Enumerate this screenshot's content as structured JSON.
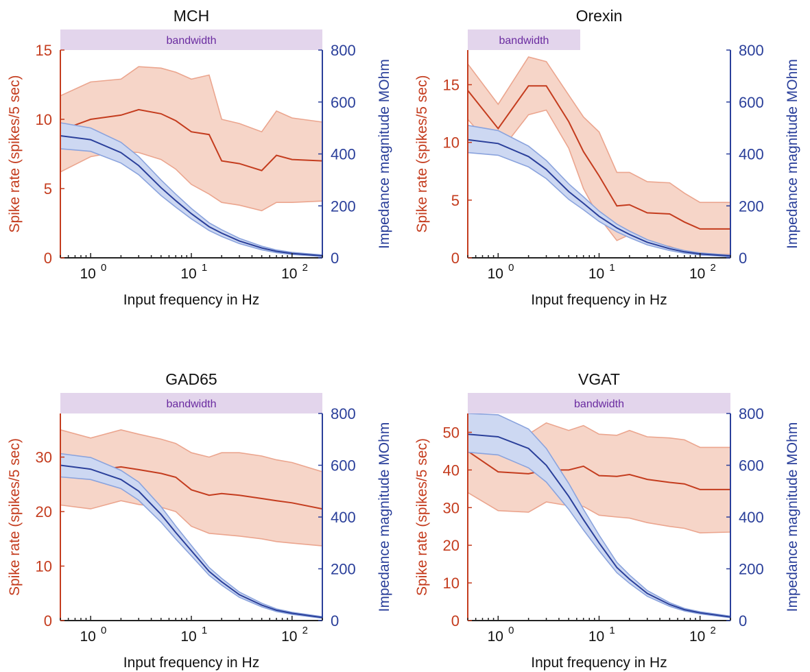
{
  "figure": {
    "colors": {
      "spike_line": "#c43c1e",
      "spike_fill": "#f6d5c8",
      "spike_edge": "#eba58e",
      "imp_line": "#2a3f9a",
      "imp_fill": "#cdd8f2",
      "imp_edge": "#8aa3dd",
      "bandwidth_fill": "#e3d5ec",
      "bandwidth_text": "#6a2ba0",
      "axis": "#222222"
    }
  },
  "chart_data": [
    {
      "type": "line",
      "title": "MCH",
      "xlabel": "Input frequency in Hz",
      "ylabel_left": "Spike rate (spikes/5 sec)",
      "ylabel_right": "Impedance magnitude MOhm",
      "x_scale": "log",
      "xlim": [
        0.5,
        200
      ],
      "x_ticks": [
        {
          "value": 1,
          "base": "10",
          "exp": "0"
        },
        {
          "value": 10,
          "base": "10",
          "exp": "1"
        },
        {
          "value": 100,
          "base": "10",
          "exp": "2"
        }
      ],
      "ylim_left": [
        0,
        15
      ],
      "yticks_left": [
        0,
        5,
        10,
        15
      ],
      "ylim_right": [
        0,
        800
      ],
      "yticks_right": [
        0,
        200,
        400,
        600,
        800
      ],
      "bandwidth": {
        "label": "bandwidth",
        "xmin": 0.5,
        "xmax": 200
      },
      "spike_rate": {
        "x": [
          0.5,
          1,
          2,
          3,
          5,
          7,
          10,
          15,
          20,
          30,
          50,
          70,
          100,
          200
        ],
        "mean": [
          9.2,
          10.0,
          10.3,
          10.7,
          10.4,
          9.9,
          9.1,
          8.9,
          7.0,
          6.8,
          6.3,
          7.4,
          7.1,
          7.0
        ],
        "upper": [
          11.7,
          12.7,
          12.9,
          13.8,
          13.7,
          13.4,
          12.9,
          13.2,
          10.0,
          9.7,
          9.1,
          10.6,
          10.1,
          9.8
        ],
        "lower": [
          6.2,
          7.3,
          7.7,
          7.6,
          7.1,
          6.4,
          5.3,
          4.6,
          4.0,
          3.8,
          3.4,
          4.0,
          4.0,
          4.1
        ]
      },
      "impedance": {
        "x": [
          0.5,
          1,
          2,
          3,
          5,
          7,
          10,
          15,
          20,
          30,
          50,
          70,
          100,
          200
        ],
        "mean": [
          470,
          455,
          405,
          355,
          270,
          220,
          170,
          120,
          95,
          65,
          38,
          25,
          17,
          8
        ],
        "upper": [
          520,
          500,
          445,
          390,
          300,
          245,
          190,
          135,
          108,
          75,
          45,
          30,
          21,
          11
        ],
        "lower": [
          420,
          410,
          365,
          320,
          240,
          195,
          150,
          105,
          82,
          55,
          31,
          20,
          13,
          5
        ]
      }
    },
    {
      "type": "line",
      "title": "Orexin",
      "xlabel": "Input frequency in Hz",
      "ylabel_left": "Spike rate (spikes/5 sec)",
      "ylabel_right": "Impedance magnitude MOhm",
      "x_scale": "log",
      "xlim": [
        0.5,
        200
      ],
      "x_ticks": [
        {
          "value": 1,
          "base": "10",
          "exp": "0"
        },
        {
          "value": 10,
          "base": "10",
          "exp": "1"
        },
        {
          "value": 100,
          "base": "10",
          "exp": "2"
        }
      ],
      "ylim_left": [
        0,
        18
      ],
      "yticks_left": [
        0,
        5,
        10,
        15
      ],
      "ylim_right": [
        0,
        800
      ],
      "yticks_right": [
        0,
        200,
        400,
        600,
        800
      ],
      "bandwidth": {
        "label": "bandwidth",
        "xmin": 0.5,
        "xmax": 6.5
      },
      "spike_rate": {
        "x": [
          0.5,
          1,
          2,
          3,
          5,
          7,
          10,
          15,
          20,
          30,
          50,
          70,
          100,
          200
        ],
        "mean": [
          14.5,
          11.2,
          14.9,
          14.9,
          11.8,
          9.2,
          7.1,
          4.5,
          4.6,
          3.9,
          3.8,
          3.1,
          2.5,
          2.5
        ],
        "upper": [
          16.8,
          13.3,
          17.4,
          17.0,
          14.1,
          12.2,
          10.9,
          7.4,
          7.4,
          6.6,
          6.5,
          5.6,
          4.8,
          4.8
        ],
        "lower": [
          12.0,
          9.0,
          12.4,
          12.8,
          9.5,
          6.0,
          3.5,
          1.5,
          2.0,
          1.2,
          1.0,
          0.5,
          0.3,
          0.3
        ]
      },
      "impedance": {
        "x": [
          0.5,
          1,
          2,
          3,
          5,
          7,
          10,
          15,
          20,
          30,
          50,
          70,
          100,
          200
        ],
        "mean": [
          455,
          440,
          390,
          340,
          255,
          210,
          160,
          115,
          90,
          60,
          35,
          23,
          15,
          7
        ],
        "upper": [
          510,
          490,
          430,
          375,
          285,
          235,
          180,
          130,
          103,
          70,
          42,
          28,
          19,
          10
        ],
        "lower": [
          405,
          395,
          350,
          305,
          225,
          185,
          140,
          100,
          78,
          50,
          28,
          18,
          11,
          4
        ]
      }
    },
    {
      "type": "line",
      "title": "GAD65",
      "xlabel": "Input frequency in Hz",
      "ylabel_left": "Spike rate (spikes/5 sec)",
      "ylabel_right": "Impedance magnitude MOhm",
      "x_scale": "log",
      "xlim": [
        0.5,
        200
      ],
      "x_ticks": [
        {
          "value": 1,
          "base": "10",
          "exp": "0"
        },
        {
          "value": 10,
          "base": "10",
          "exp": "1"
        },
        {
          "value": 100,
          "base": "10",
          "exp": "2"
        }
      ],
      "ylim_left": [
        0,
        38
      ],
      "yticks_left": [
        0,
        10,
        20,
        30
      ],
      "ylim_right": [
        0,
        800
      ],
      "yticks_right": [
        0,
        200,
        400,
        600,
        800
      ],
      "bandwidth": {
        "label": "bandwidth",
        "xmin": 0.5,
        "xmax": 200
      },
      "spike_rate": {
        "x": [
          0.5,
          1,
          2,
          3,
          5,
          7,
          10,
          15,
          20,
          30,
          50,
          70,
          100,
          200
        ],
        "mean": [
          28.5,
          27.5,
          28.2,
          27.7,
          27.0,
          26.3,
          24.0,
          23.0,
          23.3,
          23.0,
          22.4,
          22.0,
          21.6,
          20.5
        ],
        "upper": [
          35.0,
          33.5,
          35.0,
          34.2,
          33.3,
          32.5,
          30.8,
          30.0,
          30.8,
          30.8,
          30.2,
          29.5,
          29.0,
          27.3
        ],
        "lower": [
          21.2,
          20.5,
          22.0,
          21.3,
          20.8,
          20.0,
          17.3,
          16.0,
          15.8,
          15.5,
          15.0,
          14.5,
          14.2,
          13.7
        ]
      },
      "impedance": {
        "x": [
          0.5,
          1,
          2,
          3,
          5,
          7,
          10,
          15,
          20,
          30,
          50,
          70,
          100,
          200
        ],
        "mean": [
          600,
          585,
          545,
          500,
          410,
          340,
          270,
          190,
          150,
          100,
          60,
          40,
          28,
          12
        ],
        "upper": [
          645,
          630,
          580,
          535,
          440,
          365,
          290,
          205,
          163,
          110,
          67,
          45,
          32,
          15
        ],
        "lower": [
          555,
          545,
          510,
          465,
          380,
          315,
          250,
          175,
          137,
          90,
          53,
          35,
          24,
          9
        ]
      }
    },
    {
      "type": "line",
      "title": "VGAT",
      "xlabel": "Input frequency in Hz",
      "ylabel_left": "Spike rate (spikes/5 sec)",
      "ylabel_right": "Impedance magnitude MOhm",
      "x_scale": "log",
      "xlim": [
        0.5,
        200
      ],
      "x_ticks": [
        {
          "value": 1,
          "base": "10",
          "exp": "0"
        },
        {
          "value": 10,
          "base": "10",
          "exp": "1"
        },
        {
          "value": 100,
          "base": "10",
          "exp": "2"
        }
      ],
      "ylim_left": [
        0,
        55
      ],
      "yticks_left": [
        0,
        10,
        20,
        30,
        40,
        50
      ],
      "ylim_right": [
        0,
        800
      ],
      "yticks_right": [
        0,
        200,
        400,
        600,
        800
      ],
      "bandwidth": {
        "label": "bandwidth",
        "xmin": 0.5,
        "xmax": 200
      },
      "spike_rate": {
        "x": [
          0.5,
          1,
          2,
          3,
          5,
          7,
          10,
          15,
          20,
          30,
          50,
          70,
          100,
          200
        ],
        "mean": [
          45.0,
          39.5,
          39.0,
          40.0,
          40.0,
          41.0,
          38.5,
          38.3,
          38.8,
          37.5,
          36.7,
          36.3,
          34.8,
          34.8
        ],
        "upper": [
          55.0,
          50.0,
          49.5,
          52.5,
          50.5,
          51.8,
          49.5,
          49.2,
          50.5,
          48.8,
          48.5,
          48.0,
          46.0,
          46.0
        ],
        "lower": [
          34.0,
          29.2,
          28.8,
          31.5,
          30.5,
          30.3,
          28.0,
          27.5,
          27.2,
          26.0,
          25.0,
          24.5,
          23.3,
          23.5
        ]
      },
      "impedance": {
        "x": [
          0.5,
          1,
          2,
          3,
          5,
          7,
          10,
          15,
          20,
          30,
          50,
          70,
          100,
          200
        ],
        "mean": [
          720,
          710,
          665,
          600,
          480,
          390,
          300,
          205,
          160,
          105,
          62,
          42,
          30,
          14
        ],
        "upper": [
          800,
          795,
          740,
          665,
          530,
          430,
          330,
          225,
          176,
          116,
          69,
          47,
          34,
          17
        ],
        "lower": [
          650,
          640,
          590,
          535,
          430,
          350,
          270,
          185,
          144,
          94,
          55,
          37,
          26,
          11
        ]
      }
    }
  ]
}
